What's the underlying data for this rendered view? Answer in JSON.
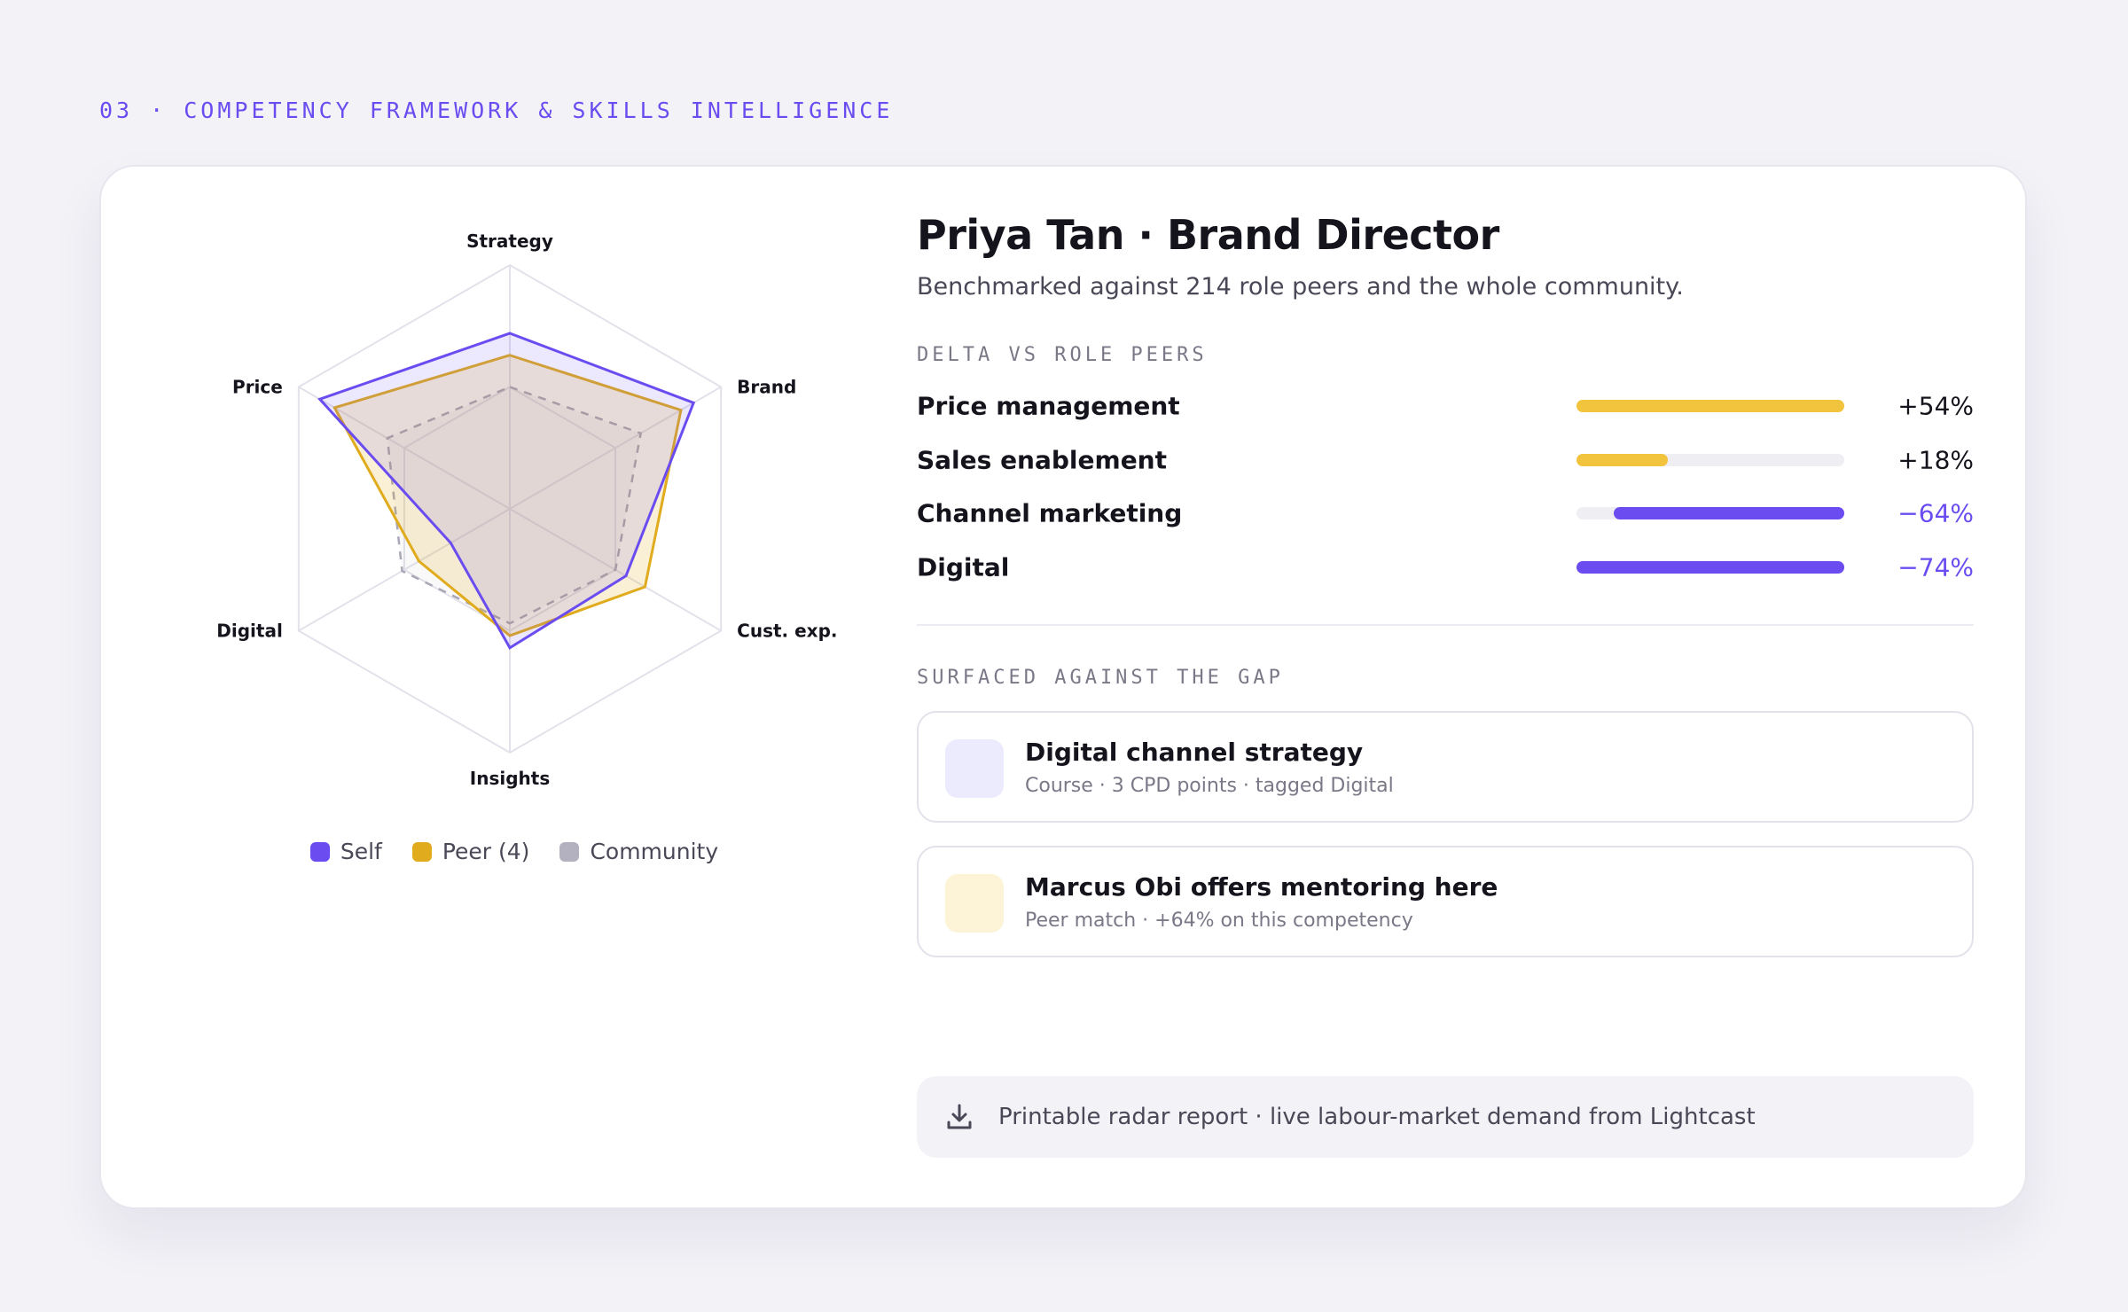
{
  "eyebrow": "03 · COMPETENCY FRAMEWORK & SKILLS INTELLIGENCE",
  "profile": {
    "title": "Priya Tan · Brand Director",
    "subtitle": "Benchmarked against 214 role peers and the whole community."
  },
  "colors": {
    "self": "#6a4cf0",
    "peer": "#e0ac1e",
    "community": "#b3b1bf",
    "positive_bar": "#f2c43d",
    "negative_bar": "#6a4cf0",
    "negative_text": "#6a4cf0"
  },
  "chart_data": {
    "type": "radar",
    "axes": [
      "Strategy",
      "Brand",
      "Cust. exp.",
      "Insights",
      "Digital",
      "Price"
    ],
    "range": [
      0,
      100
    ],
    "series": [
      {
        "name": "Self",
        "values": [
          72,
          87,
          55,
          57,
          28,
          90
        ]
      },
      {
        "name": "Peer (4)",
        "values": [
          63,
          81,
          64,
          52,
          43,
          83
        ]
      },
      {
        "name": "Community",
        "values": [
          50,
          62,
          50,
          47,
          51,
          58
        ]
      }
    ],
    "legend_position": "bottom",
    "grid_levels": 2
  },
  "legend": [
    {
      "label": "Self",
      "color": "#6a4cf0"
    },
    {
      "label": "Peer (4)",
      "color": "#e0ac1e"
    },
    {
      "label": "Community",
      "color": "#b3b1bf"
    }
  ],
  "delta_section": {
    "label": "DELTA VS ROLE PEERS",
    "rows": [
      {
        "label": "Price management",
        "value": "+54%",
        "fraction": 1.0,
        "direction": "positive"
      },
      {
        "label": "Sales enablement",
        "value": "+18%",
        "fraction": 0.34,
        "direction": "positive"
      },
      {
        "label": "Channel marketing",
        "value": "−64%",
        "fraction": 0.86,
        "direction": "negative"
      },
      {
        "label": "Digital",
        "value": "−74%",
        "fraction": 1.0,
        "direction": "negative"
      }
    ]
  },
  "gap_section": {
    "label": "SURFACED AGAINST THE GAP",
    "items": [
      {
        "title": "Digital channel strategy",
        "meta": "Course · 3 CPD points · tagged Digital",
        "thumb_color": "#ecebfd"
      },
      {
        "title": "Marcus Obi offers mentoring here",
        "meta": "Peer match · +64% on this competency",
        "thumb_color": "#fdf3d6"
      }
    ]
  },
  "footer": {
    "icon": "download-icon",
    "text": "Printable radar report · live labour-market demand from Lightcast"
  }
}
